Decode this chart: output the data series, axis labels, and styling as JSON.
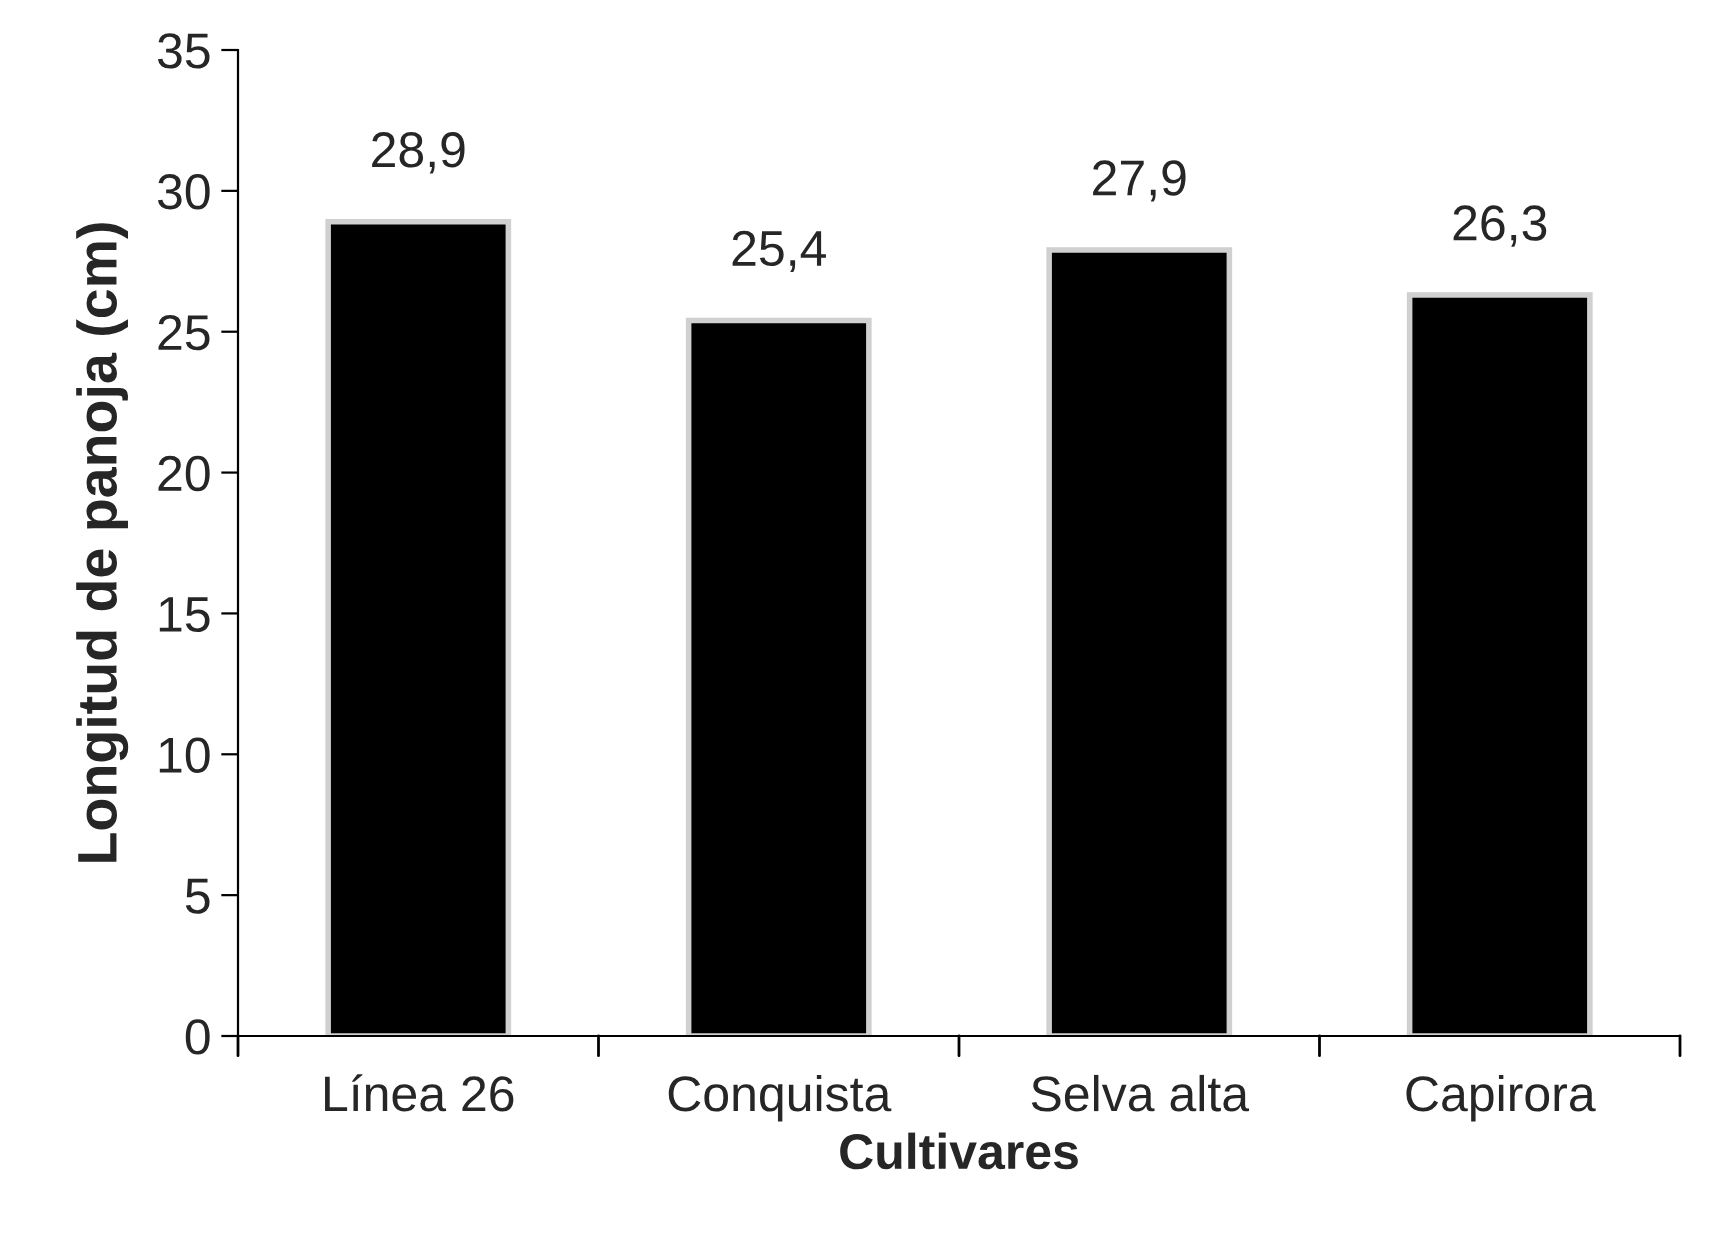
{
  "chart_data": {
    "type": "bar",
    "xlabel": "Cultivares",
    "ylabel": "Longitud de panoja (cm)",
    "categories": [
      "Línea 26",
      "Conquista",
      "Selva alta",
      "Capirora"
    ],
    "values": [
      28.9,
      25.4,
      27.9,
      26.3
    ],
    "value_labels": [
      "28,9",
      "25,4",
      "27,9",
      "26,3"
    ],
    "color": "#000000",
    "ylim": [
      0,
      35
    ],
    "yticks": [
      0,
      5,
      10,
      15,
      20,
      25,
      30,
      35
    ],
    "grid": false,
    "legend": false
  }
}
